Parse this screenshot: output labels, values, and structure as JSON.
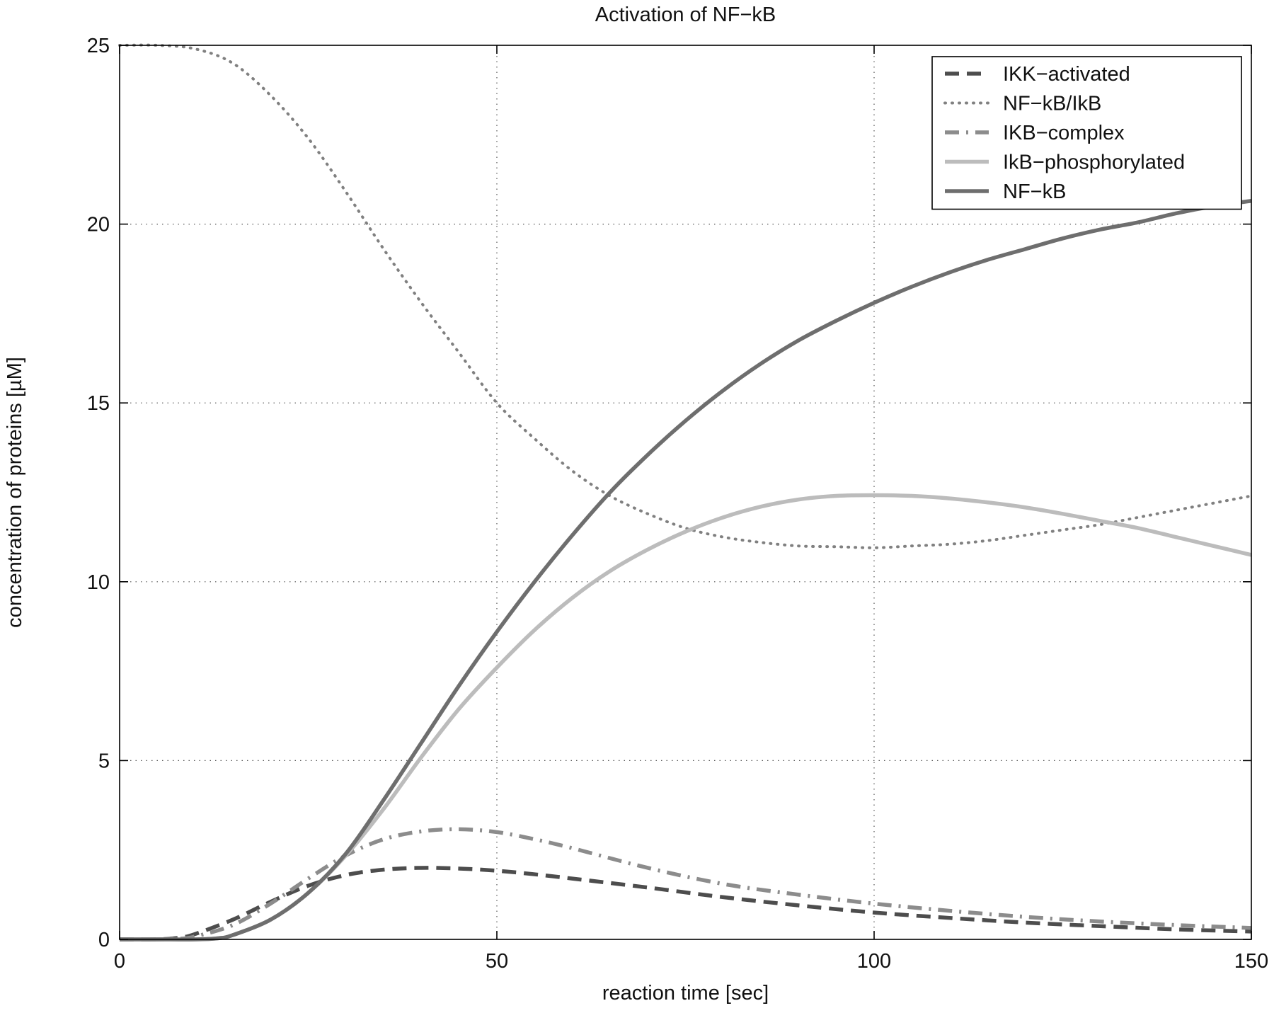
{
  "chart_data": {
    "type": "line",
    "title": "Activation of NF−kB",
    "xlabel": "reaction time [sec]",
    "ylabel": "concentration of proteins [µM]",
    "xlim": [
      0,
      150
    ],
    "ylim": [
      0,
      25
    ],
    "xticks": [
      0,
      50,
      100,
      150
    ],
    "yticks": [
      0,
      5,
      10,
      15,
      20,
      25
    ],
    "xtick_labels": [
      "0",
      "50",
      "100",
      "150"
    ],
    "ytick_labels": [
      "0",
      "5",
      "10",
      "15",
      "20",
      "25"
    ],
    "grid": true,
    "legend_position": "top-right",
    "series": [
      {
        "name": "IKK−activated",
        "style": "dashed",
        "color": "#4d4d4d",
        "x": [
          0,
          5,
          8,
          10,
          15,
          20,
          25,
          30,
          35,
          40,
          45,
          50,
          55,
          60,
          70,
          80,
          90,
          100,
          110,
          120,
          130,
          140,
          150
        ],
        "y": [
          0,
          0,
          0.05,
          0.15,
          0.55,
          1.05,
          1.5,
          1.8,
          1.95,
          2.0,
          1.98,
          1.92,
          1.82,
          1.7,
          1.45,
          1.18,
          0.95,
          0.75,
          0.6,
          0.47,
          0.37,
          0.28,
          0.22
        ]
      },
      {
        "name": "NF−kB/IkB",
        "style": "dotted",
        "color": "#808080",
        "x": [
          0,
          5,
          10,
          15,
          20,
          25,
          30,
          35,
          40,
          45,
          50,
          55,
          60,
          65,
          70,
          75,
          80,
          85,
          90,
          95,
          100,
          105,
          110,
          115,
          120,
          125,
          130,
          135,
          140,
          145,
          150
        ],
        "y": [
          25,
          25,
          24.9,
          24.5,
          23.6,
          22.4,
          20.9,
          19.3,
          17.8,
          16.4,
          15.0,
          14.0,
          13.1,
          12.4,
          11.9,
          11.5,
          11.25,
          11.1,
          11.0,
          10.98,
          10.95,
          11.0,
          11.05,
          11.15,
          11.3,
          11.45,
          11.6,
          11.8,
          12.0,
          12.2,
          12.4
        ]
      },
      {
        "name": "IKB−complex",
        "style": "dashdot",
        "color": "#8c8c8c",
        "x": [
          0,
          5,
          8,
          10,
          15,
          20,
          25,
          30,
          35,
          40,
          45,
          50,
          55,
          60,
          70,
          80,
          90,
          100,
          110,
          120,
          130,
          140,
          150
        ],
        "y": [
          0,
          0,
          0.02,
          0.08,
          0.4,
          1.0,
          1.7,
          2.35,
          2.8,
          3.02,
          3.08,
          3.0,
          2.8,
          2.55,
          2.0,
          1.55,
          1.25,
          1.0,
          0.8,
          0.63,
          0.5,
          0.4,
          0.32
        ]
      },
      {
        "name": "IkB−phosphorylated",
        "style": "solid",
        "color": "#bcbcbc",
        "x": [
          0,
          5,
          10,
          13,
          15,
          20,
          25,
          30,
          35,
          40,
          45,
          50,
          55,
          60,
          65,
          70,
          75,
          80,
          85,
          90,
          95,
          100,
          105,
          110,
          115,
          120,
          125,
          130,
          135,
          140,
          145,
          150
        ],
        "y": [
          0,
          0,
          0,
          0.03,
          0.12,
          0.55,
          1.3,
          2.35,
          3.65,
          5.1,
          6.45,
          7.6,
          8.65,
          9.55,
          10.3,
          10.9,
          11.4,
          11.8,
          12.1,
          12.3,
          12.4,
          12.42,
          12.4,
          12.33,
          12.22,
          12.08,
          11.9,
          11.7,
          11.5,
          11.25,
          11.0,
          10.75
        ]
      },
      {
        "name": "NF−kB",
        "style": "solid",
        "color": "#6e6e6e",
        "x": [
          0,
          5,
          10,
          13,
          15,
          20,
          25,
          30,
          35,
          40,
          45,
          50,
          55,
          60,
          65,
          70,
          75,
          80,
          85,
          90,
          95,
          100,
          105,
          110,
          115,
          120,
          125,
          130,
          135,
          140,
          145,
          150
        ],
        "y": [
          0,
          0,
          0,
          0.03,
          0.12,
          0.55,
          1.3,
          2.4,
          3.9,
          5.5,
          7.1,
          8.6,
          10.0,
          11.3,
          12.5,
          13.55,
          14.5,
          15.35,
          16.1,
          16.75,
          17.3,
          17.8,
          18.25,
          18.65,
          19.0,
          19.3,
          19.6,
          19.85,
          20.05,
          20.3,
          20.5,
          20.65
        ]
      }
    ]
  }
}
